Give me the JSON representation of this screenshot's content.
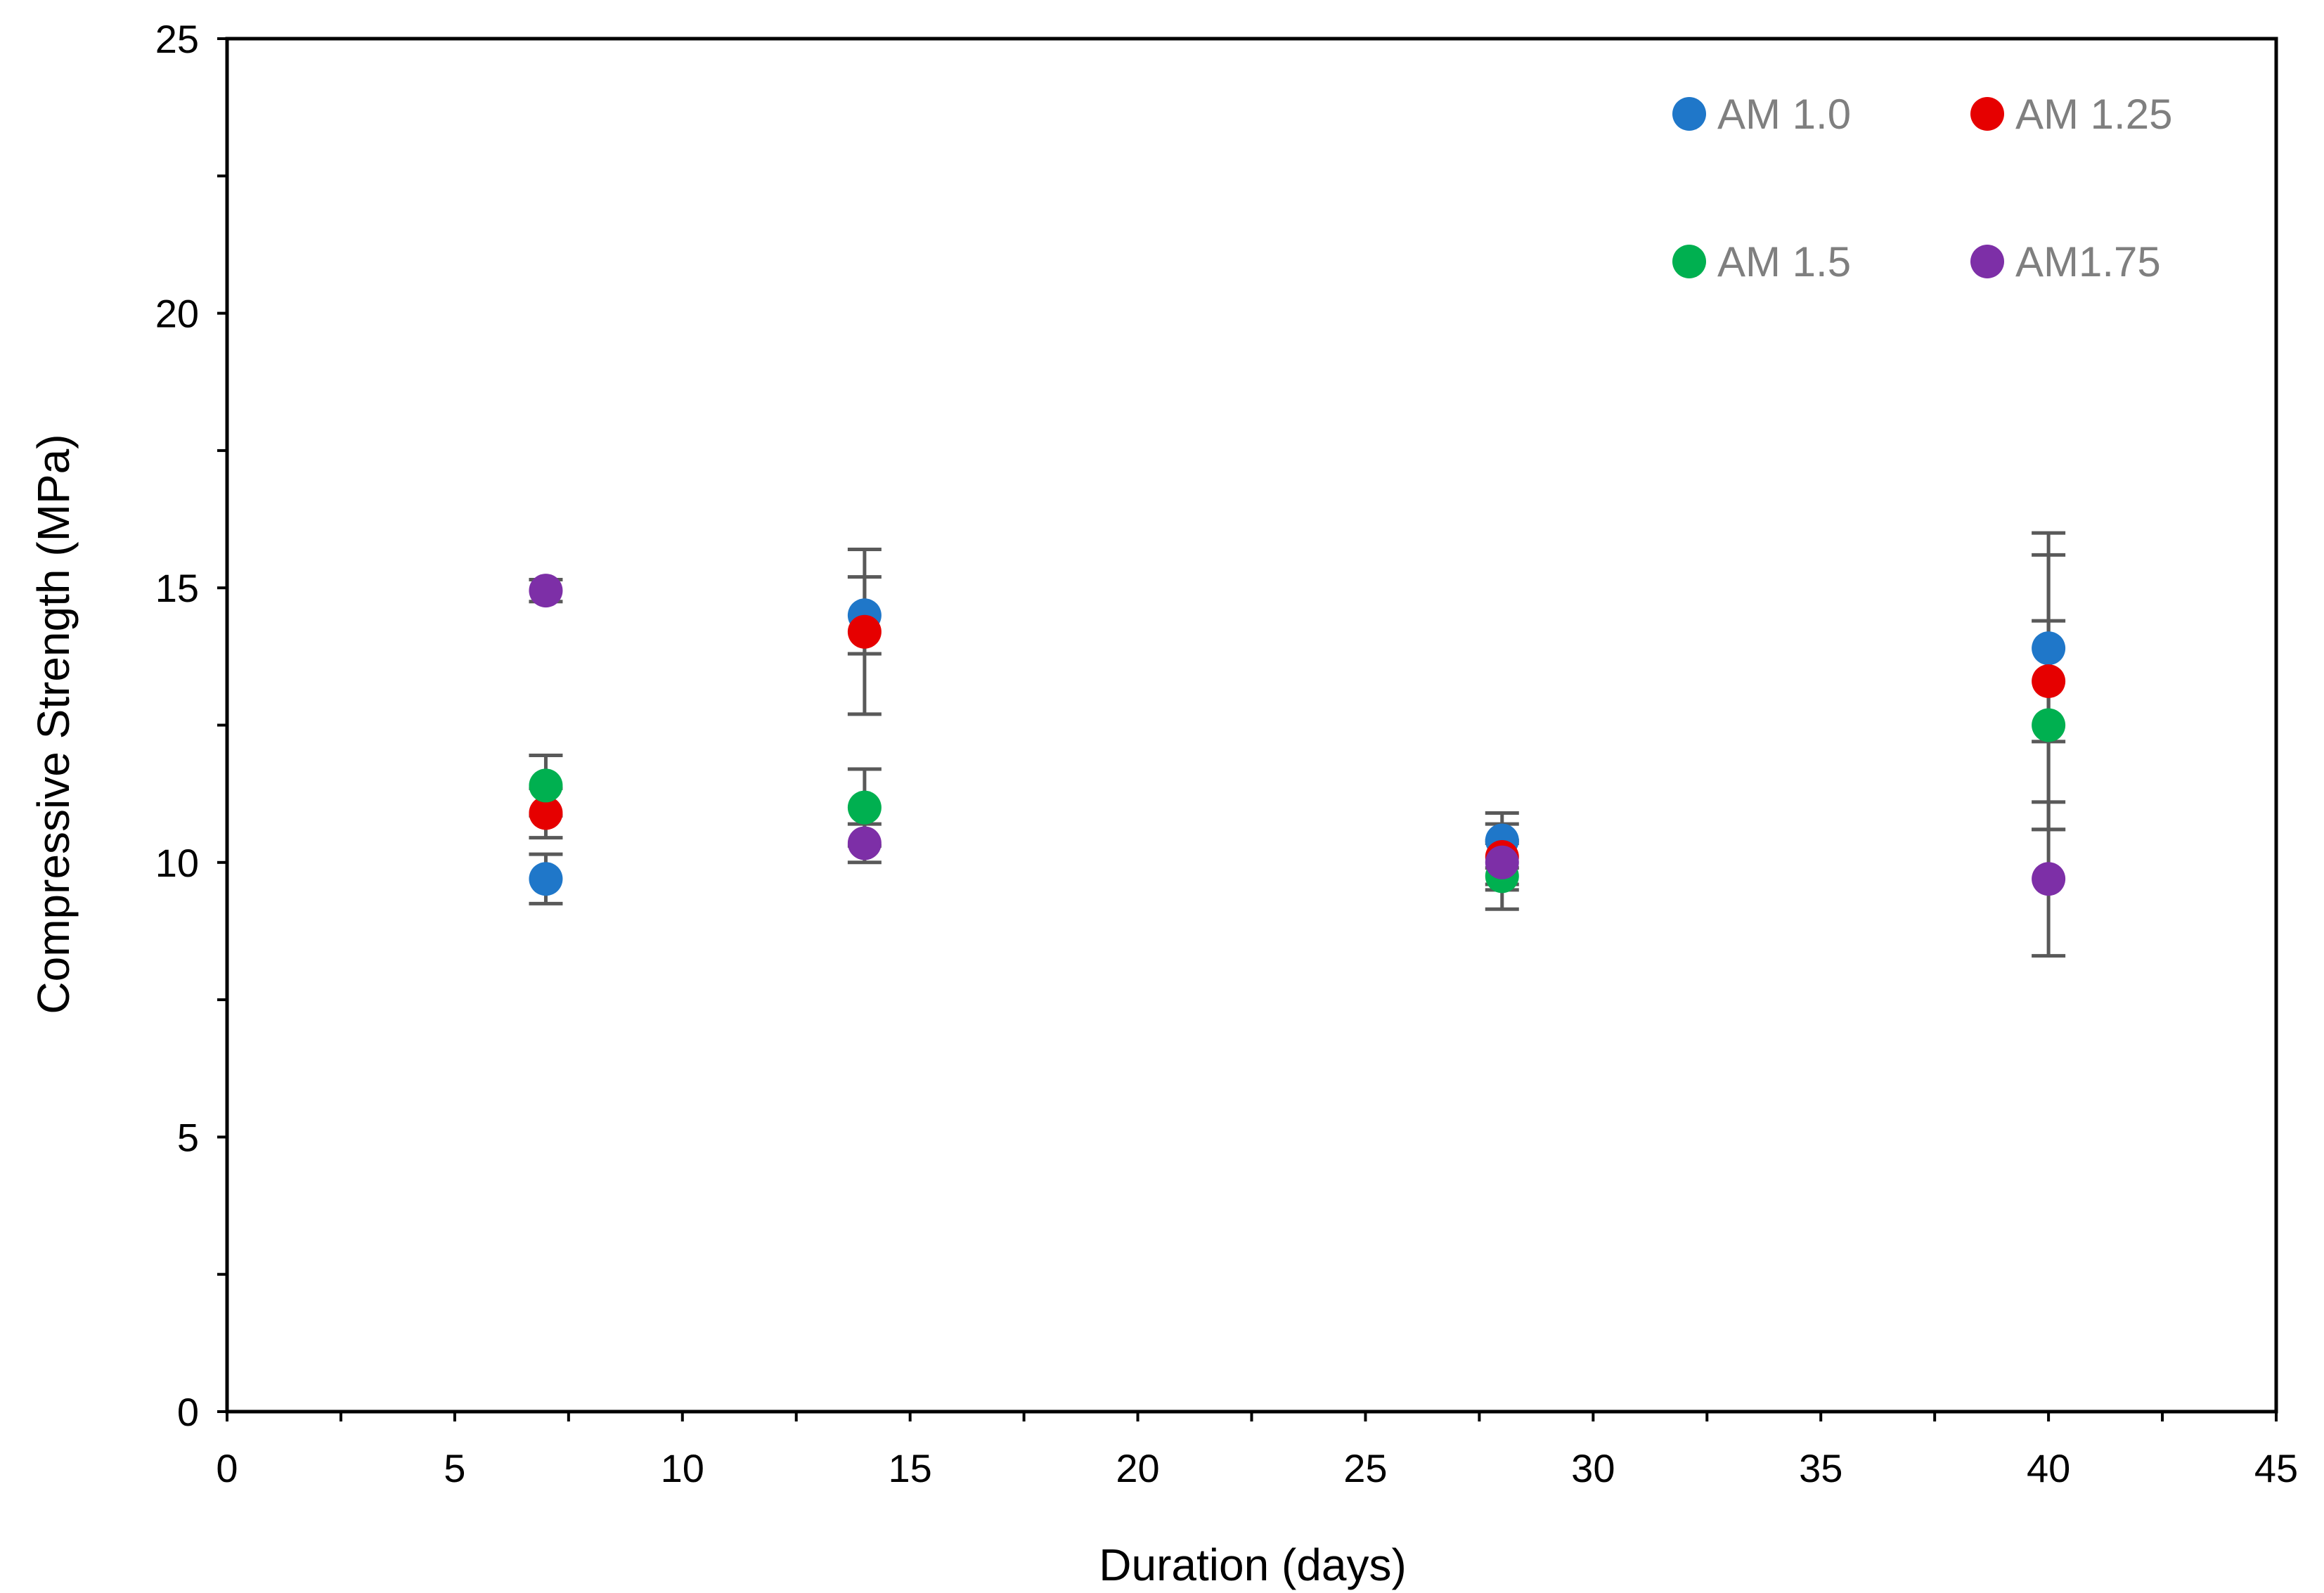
{
  "chart_data": {
    "type": "scatter",
    "title": "",
    "xlabel": "Duration (days)",
    "ylabel": "Compressive Strength (MPa)",
    "xlim": [
      0,
      45
    ],
    "ylim": [
      0,
      25
    ],
    "xticks": [
      0,
      5,
      10,
      15,
      20,
      25,
      30,
      35,
      40,
      45
    ],
    "yticks": [
      0,
      5,
      10,
      15,
      20,
      25
    ],
    "grid": false,
    "legend_position": "top-right",
    "series": [
      {
        "name": "AM 1.0",
        "color": "#1f77c9",
        "points": [
          {
            "x": 7,
            "y": 9.7,
            "err": 0.45
          },
          {
            "x": 14,
            "y": 14.5,
            "err": 0.7
          },
          {
            "x": 28,
            "y": 10.4,
            "err": 0.5
          },
          {
            "x": 40,
            "y": 13.9,
            "err": 1.7
          }
        ]
      },
      {
        "name": "AM 1.25",
        "color": "#e60000",
        "points": [
          {
            "x": 7,
            "y": 10.9,
            "err": 0.45
          },
          {
            "x": 14,
            "y": 14.2,
            "err": 1.5
          },
          {
            "x": 28,
            "y": 10.1,
            "err": 0.6
          },
          {
            "x": 40,
            "y": 13.3,
            "err": 2.7
          }
        ]
      },
      {
        "name": "AM 1.5",
        "color": "#00b050",
        "points": [
          {
            "x": 7,
            "y": 11.4,
            "err": 0.55
          },
          {
            "x": 14,
            "y": 11.0,
            "err": 0.7
          },
          {
            "x": 28,
            "y": 9.75,
            "err": 0.6
          },
          {
            "x": 40,
            "y": 12.5,
            "err": 1.9
          }
        ]
      },
      {
        "name": "AM1.75",
        "color": "#7d2fa7",
        "points": [
          {
            "x": 7,
            "y": 14.95,
            "err": 0.2
          },
          {
            "x": 14,
            "y": 10.35,
            "err": 0.35
          },
          {
            "x": 28,
            "y": 10.0,
            "err": 0.4
          },
          {
            "x": 40,
            "y": 9.7,
            "err": 1.4
          }
        ]
      }
    ]
  }
}
